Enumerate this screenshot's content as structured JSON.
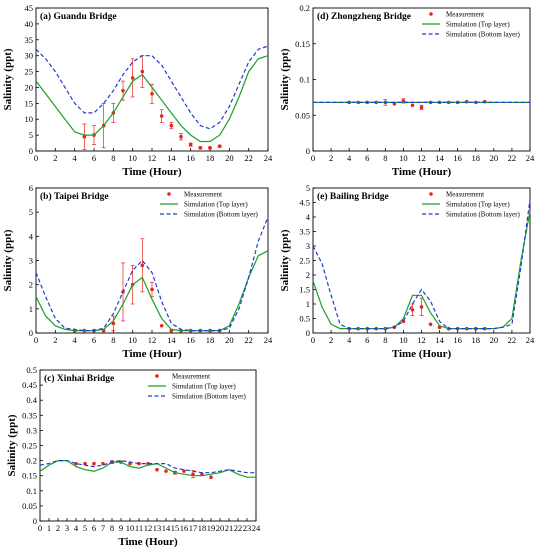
{
  "colors": {
    "top": "#1aa02a",
    "bottom": "#1f3bd6",
    "meas": "#e8241c"
  },
  "chart_data": [
    {
      "type": "line",
      "title": "(a) Guandu Bridge",
      "xlabel": "Time (Hour)",
      "ylabel": "Salinity (ppt)",
      "xlim": [
        0,
        24
      ],
      "ylim": [
        0,
        45
      ],
      "xticks": [
        "0",
        "2",
        "4",
        "6",
        "8",
        "10",
        "12",
        "14",
        "16",
        "18",
        "20",
        "22",
        "24"
      ],
      "yticks": [
        "0",
        "5",
        "10",
        "15",
        "20",
        "25",
        "30",
        "35",
        "40",
        "45"
      ],
      "legend_position": "none",
      "series": [
        {
          "name": "Measurement",
          "kind": "points",
          "x": [
            5,
            6,
            7,
            8,
            9,
            10,
            11,
            12,
            13,
            14,
            15,
            16,
            17,
            18,
            19
          ],
          "y": [
            4.5,
            5,
            8,
            12,
            19,
            23,
            25,
            18,
            11,
            8,
            4.5,
            2,
            1,
            1,
            1.5
          ],
          "err": [
            4,
            3,
            7,
            3,
            3,
            6,
            5,
            3,
            2,
            1,
            1,
            0.5,
            0.3,
            0.3,
            0.3
          ]
        },
        {
          "name": "Simulation (Top layer)",
          "kind": "solid",
          "x": [
            0,
            1,
            2,
            3,
            4,
            5,
            6,
            7,
            8,
            9,
            10,
            11,
            12,
            13,
            14,
            15,
            16,
            17,
            18,
            19,
            20,
            21,
            22,
            23,
            24
          ],
          "y": [
            22,
            18,
            14,
            10,
            6,
            5,
            5,
            8,
            12,
            17,
            22,
            24,
            20,
            16,
            12,
            8,
            5,
            3,
            3,
            5,
            10,
            17,
            25,
            29,
            30
          ]
        },
        {
          "name": "Simulation (Bottom layer)",
          "kind": "dashed",
          "x": [
            0,
            1,
            2,
            3,
            4,
            5,
            6,
            7,
            8,
            9,
            10,
            11,
            12,
            13,
            14,
            15,
            16,
            17,
            18,
            19,
            20,
            21,
            22,
            23,
            24
          ],
          "y": [
            32,
            29,
            25,
            20,
            15,
            12,
            12,
            15,
            19,
            24,
            28,
            30,
            30,
            27,
            22,
            17,
            12,
            8,
            7,
            9,
            14,
            21,
            28,
            32,
            33
          ]
        }
      ]
    },
    {
      "type": "line",
      "title": "(d) Zhongzheng Bridge",
      "xlabel": "Time (Hour)",
      "ylabel": "Salinity (ppt)",
      "xlim": [
        0,
        24
      ],
      "ylim": [
        0,
        0.2
      ],
      "xticks": [
        "0",
        "2",
        "4",
        "6",
        "8",
        "10",
        "12",
        "14",
        "16",
        "18",
        "20",
        "22",
        "24"
      ],
      "yticks": [
        "0",
        "0.05",
        "0.1",
        "0.15",
        "0.2"
      ],
      "legend_position": "top-right",
      "series": [
        {
          "name": "Measurement",
          "kind": "points",
          "x": [
            4,
            5,
            6,
            7,
            8,
            9,
            10,
            11,
            12,
            13,
            14,
            15,
            16,
            17,
            18,
            19
          ],
          "y": [
            0.068,
            0.068,
            0.068,
            0.068,
            0.068,
            0.066,
            0.07,
            0.064,
            0.061,
            0.068,
            0.068,
            0.068,
            0.068,
            0.069,
            0.068,
            0.069
          ],
          "err": [
            0,
            0,
            0,
            0,
            0.004,
            0,
            0.003,
            0,
            0.003,
            0,
            0,
            0,
            0,
            0,
            0,
            0
          ]
        },
        {
          "name": "Simulation (Top layer)",
          "kind": "solid",
          "x": [
            0,
            24
          ],
          "y": [
            0.068,
            0.068
          ]
        },
        {
          "name": "Simulation (Bottom layer)",
          "kind": "dashed",
          "x": [
            0,
            24
          ],
          "y": [
            0.068,
            0.068
          ]
        }
      ]
    },
    {
      "type": "line",
      "title": "(b) Taipei Bridge",
      "xlabel": "Time (Hour)",
      "ylabel": "Salinity (ppt)",
      "xlim": [
        0,
        24
      ],
      "ylim": [
        0,
        6
      ],
      "xticks": [
        "0",
        "2",
        "4",
        "6",
        "8",
        "10",
        "12",
        "14",
        "16",
        "18",
        "20",
        "22",
        "24"
      ],
      "yticks": [
        "0",
        "1",
        "2",
        "3",
        "4",
        "5",
        "6"
      ],
      "legend_position": "top-right",
      "series": [
        {
          "name": "Measurement",
          "kind": "points",
          "x": [
            4,
            5,
            6,
            7,
            8,
            9,
            10,
            11,
            12,
            13,
            14,
            15,
            16,
            17,
            18,
            19
          ],
          "y": [
            0.1,
            0.1,
            0.1,
            0.1,
            0.4,
            1.7,
            2,
            2.8,
            1.8,
            0.3,
            0.1,
            0.1,
            0.1,
            0.1,
            0.1,
            0.1
          ],
          "err": [
            0,
            0,
            0,
            0,
            0.3,
            1.2,
            0.8,
            1.1,
            0.3,
            0,
            0,
            0,
            0,
            0,
            0,
            0
          ]
        },
        {
          "name": "Simulation (Top layer)",
          "kind": "solid",
          "x": [
            0,
            1,
            2,
            3,
            4,
            5,
            6,
            7,
            8,
            9,
            10,
            11,
            12,
            13,
            14,
            15,
            16,
            17,
            18,
            19,
            20,
            21,
            22,
            23,
            24
          ],
          "y": [
            1.5,
            0.7,
            0.3,
            0.15,
            0.1,
            0.1,
            0.1,
            0.15,
            0.5,
            1.2,
            2,
            2.3,
            1.4,
            0.6,
            0.15,
            0.1,
            0.1,
            0.1,
            0.1,
            0.1,
            0.3,
            1.2,
            2.3,
            3.2,
            3.4
          ]
        },
        {
          "name": "Simulation (Bottom layer)",
          "kind": "dashed",
          "x": [
            0,
            1,
            2,
            3,
            4,
            5,
            6,
            7,
            8,
            9,
            10,
            11,
            12,
            13,
            14,
            15,
            16,
            17,
            18,
            19,
            20,
            21,
            22,
            23,
            24
          ],
          "y": [
            2.5,
            1.5,
            0.6,
            0.2,
            0.15,
            0.1,
            0.1,
            0.2,
            0.8,
            1.7,
            2.6,
            3,
            2.5,
            1.3,
            0.4,
            0.15,
            0.1,
            0.1,
            0.1,
            0.1,
            0.2,
            1,
            2.3,
            3.8,
            4.8
          ]
        }
      ]
    },
    {
      "type": "line",
      "title": "(e) Bailing Bridge",
      "xlabel": "Time (Hour)",
      "ylabel": "Salinity (ppt)",
      "xlim": [
        0,
        24
      ],
      "ylim": [
        0,
        5
      ],
      "xticks": [
        "0",
        "2",
        "4",
        "6",
        "8",
        "10",
        "12",
        "14",
        "16",
        "18",
        "20",
        "22",
        "24"
      ],
      "yticks": [
        "0",
        "0.5",
        "1",
        "1.5",
        "2",
        "2.5",
        "3",
        "3.5",
        "4",
        "4.5",
        "5"
      ],
      "legend_position": "top-right",
      "series": [
        {
          "name": "Measurement",
          "kind": "points",
          "x": [
            4,
            5,
            6,
            7,
            8,
            9,
            10,
            11,
            12,
            13,
            14,
            15,
            16,
            17,
            18,
            19
          ],
          "y": [
            0.15,
            0.15,
            0.15,
            0.15,
            0.15,
            0.2,
            0.4,
            0.8,
            0.9,
            0.3,
            0.2,
            0.15,
            0.15,
            0.15,
            0.15,
            0.15
          ],
          "err": [
            0,
            0,
            0,
            0,
            0,
            0,
            0,
            0.2,
            0.3,
            0,
            0,
            0,
            0,
            0,
            0,
            0
          ]
        },
        {
          "name": "Simulation (Top layer)",
          "kind": "solid",
          "x": [
            0,
            1,
            2,
            3,
            4,
            5,
            6,
            7,
            8,
            9,
            10,
            11,
            12,
            13,
            14,
            15,
            16,
            17,
            18,
            19,
            20,
            21,
            22,
            23,
            24
          ],
          "y": [
            1.8,
            0.9,
            0.3,
            0.15,
            0.15,
            0.15,
            0.15,
            0.15,
            0.15,
            0.2,
            0.5,
            1.3,
            1.3,
            0.7,
            0.25,
            0.15,
            0.15,
            0.15,
            0.15,
            0.15,
            0.15,
            0.2,
            0.5,
            2.5,
            4.2
          ]
        },
        {
          "name": "Simulation (Bottom layer)",
          "kind": "dashed",
          "x": [
            0,
            1,
            2,
            3,
            4,
            5,
            6,
            7,
            8,
            9,
            10,
            11,
            12,
            13,
            14,
            15,
            16,
            17,
            18,
            19,
            20,
            21,
            22,
            23,
            24
          ],
          "y": [
            3,
            2.4,
            1.3,
            0.3,
            0.15,
            0.15,
            0.15,
            0.15,
            0.15,
            0.2,
            0.4,
            1,
            1.5,
            1.1,
            0.4,
            0.15,
            0.15,
            0.15,
            0.15,
            0.15,
            0.15,
            0.2,
            0.3,
            2.3,
            4.6
          ]
        }
      ]
    },
    {
      "type": "line",
      "title": "(c) Xinhai Bridge",
      "xlabel": "Time (Hour)",
      "ylabel": "Salinity (ppt)",
      "xlim": [
        0,
        24
      ],
      "ylim": [
        0,
        0.5
      ],
      "xticks": [
        "0",
        "1",
        "2",
        "3",
        "4",
        "5",
        "6",
        "7",
        "8",
        "9",
        "10",
        "11",
        "12",
        "13",
        "14",
        "15",
        "16",
        "17",
        "18",
        "19",
        "20",
        "21",
        "22",
        "23",
        "24"
      ],
      "yticks": [
        "0",
        "0.05",
        "0.1",
        "0.15",
        "0.2",
        "0.25",
        "0.3",
        "0.35",
        "0.4",
        "0.45",
        "0.5"
      ],
      "legend_position": "top-right",
      "series": [
        {
          "name": "Measurement",
          "kind": "points",
          "x": [
            4,
            5,
            6,
            7,
            8,
            9,
            10,
            11,
            12,
            13,
            14,
            15,
            16,
            17,
            18,
            19
          ],
          "y": [
            0.19,
            0.19,
            0.19,
            0.19,
            0.195,
            0.195,
            0.19,
            0.19,
            0.19,
            0.17,
            0.165,
            0.16,
            0.165,
            0.155,
            0.155,
            0.145
          ],
          "err": [
            0,
            0,
            0,
            0,
            0.005,
            0,
            0,
            0,
            0,
            0,
            0,
            0.005,
            0,
            0.012,
            0,
            0
          ]
        },
        {
          "name": "Simulation (Top layer)",
          "kind": "solid",
          "x": [
            0,
            1,
            2,
            3,
            4,
            5,
            6,
            7,
            8,
            9,
            10,
            11,
            12,
            13,
            14,
            15,
            16,
            17,
            18,
            19,
            20,
            21,
            22,
            23,
            24
          ],
          "y": [
            0.165,
            0.185,
            0.2,
            0.2,
            0.18,
            0.17,
            0.165,
            0.175,
            0.195,
            0.195,
            0.18,
            0.175,
            0.185,
            0.19,
            0.175,
            0.16,
            0.155,
            0.15,
            0.15,
            0.155,
            0.16,
            0.17,
            0.155,
            0.145,
            0.145
          ]
        },
        {
          "name": "Simulation (Bottom layer)",
          "kind": "dashed",
          "x": [
            0,
            1,
            2,
            3,
            4,
            5,
            6,
            7,
            8,
            9,
            10,
            11,
            12,
            13,
            14,
            15,
            16,
            17,
            18,
            19,
            20,
            21,
            22,
            23,
            24
          ],
          "y": [
            0.185,
            0.19,
            0.2,
            0.2,
            0.19,
            0.185,
            0.18,
            0.185,
            0.195,
            0.2,
            0.195,
            0.19,
            0.19,
            0.19,
            0.19,
            0.175,
            0.17,
            0.165,
            0.16,
            0.16,
            0.165,
            0.17,
            0.165,
            0.16,
            0.16
          ]
        }
      ]
    }
  ]
}
